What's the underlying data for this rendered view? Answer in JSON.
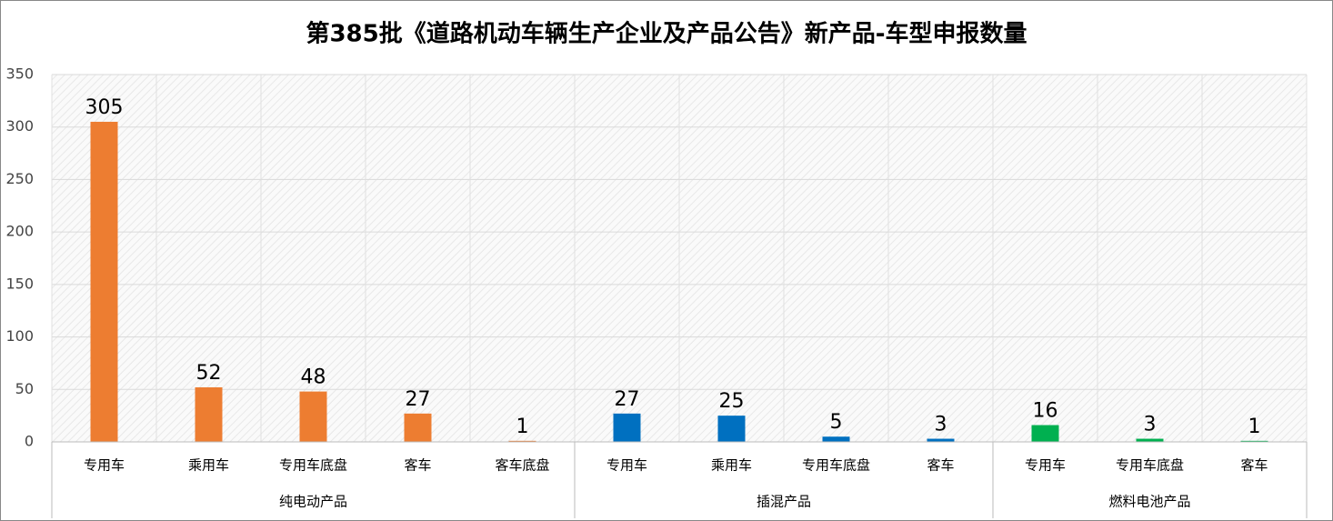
{
  "chart_data": {
    "type": "bar",
    "title": "第385批《道路机动车辆生产企业及产品公告》新产品-车型申报数量",
    "groups": [
      {
        "name": "纯电动产品",
        "color": "#ed7d31",
        "categories": [
          "专用车",
          "乘用车",
          "专用车底盘",
          "客车",
          "客车底盘"
        ],
        "values": [
          305,
          52,
          48,
          27,
          1
        ]
      },
      {
        "name": "插混产品",
        "color": "#0070c0",
        "categories": [
          "专用车",
          "乘用车",
          "专用车底盘",
          "客车"
        ],
        "values": [
          27,
          25,
          5,
          3
        ]
      },
      {
        "name": "燃料电池产品",
        "color": "#00b050",
        "categories": [
          "专用车",
          "专用车底盘",
          "客车"
        ],
        "values": [
          16,
          3,
          1
        ]
      }
    ],
    "ylim": [
      0,
      350
    ],
    "yticks": [
      0,
      50,
      100,
      150,
      200,
      250,
      300,
      350
    ],
    "grid": true
  }
}
